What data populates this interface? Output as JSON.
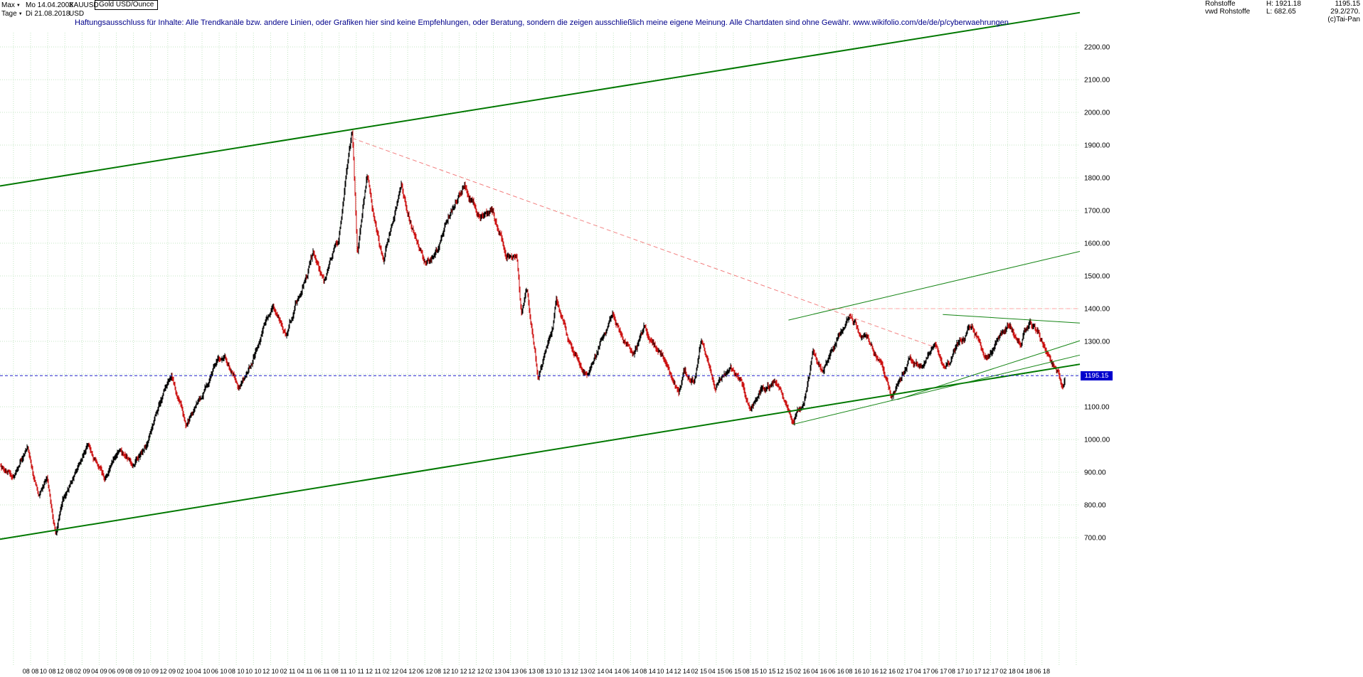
{
  "header": {
    "range_selector": "Max",
    "start_date": "Mo 14.04.2008",
    "symbol": "XAUUSD",
    "instrument": "Gold USD/Ounce",
    "period_selector": "Tage",
    "end_date": "Di 21.08.2018",
    "currency": "USD",
    "disclaimer": "Haftungsausschluss für Inhalte: Alle Trendkanäle bzw. andere Linien, oder Grafiken hier sind keine Empfehlungen, oder Beratung, sondern die zeigen ausschließlich meine eigene Meinung. Alle Chartdaten sind ohne Gewähr.  www.wikifolio.com/de/de/p/cyberwaehrungen",
    "quote_info": {
      "rows": [
        {
          "c1": "Rohstoffe",
          "c2": "H: 1921.18",
          "c3": "1195.15"
        },
        {
          "c1": "vwd Rohstoffe",
          "c2": "L: 682.65",
          "c3": "29.2/270."
        },
        {
          "c1": "",
          "c2": "",
          "c3": "(c)Tai-Pan"
        }
      ]
    }
  },
  "price_tag": {
    "value": "1195.15",
    "bg": "#0000cd"
  },
  "chart_data": {
    "type": "candlestick",
    "title": "Gold USD/Ounce",
    "symbol": "XAUUSD",
    "currency": "USD",
    "timeframe": "Tage",
    "visible_range": {
      "from": "Mo 14.04.2008",
      "to": "Di 21.08.2018"
    },
    "period_high": 1921.18,
    "period_low": 682.65,
    "last_price": 1195.15,
    "y_axis": {
      "min": 700,
      "max": 2200,
      "step": 100,
      "labels": [
        "2200.00",
        "2100.00",
        "2000.00",
        "1900.00",
        "1800.00",
        "1700.00",
        "1600.00",
        "1500.00",
        "1400.00",
        "1300.00",
        "1100.00",
        "1000.00",
        "900.00",
        "800.00",
        "700.00"
      ]
    },
    "x_axis": {
      "tick_labels": [
        "08 08",
        "10 08",
        "12 08",
        "02 09",
        "04 09",
        "06 09",
        "08 09",
        "10 09",
        "12 09",
        "02 10",
        "04 10",
        "06 10",
        "08 10",
        "10 10",
        "12 10",
        "02 11",
        "04 11",
        "06 11",
        "08 11",
        "10 11",
        "12 11",
        "02 12",
        "04 12",
        "06 12",
        "08 12",
        "10 12",
        "12 12",
        "02 13",
        "04 13",
        "06 13",
        "08 13",
        "10 13",
        "12 13",
        "02 14",
        "04 14",
        "06 14",
        "08 14",
        "10 14",
        "12 14",
        "02 15",
        "04 15",
        "06 15",
        "08 15",
        "10 15",
        "12 15",
        "02 16",
        "04 16",
        "06 16",
        "08 16",
        "10 16",
        "12 16",
        "02 17",
        "04 17",
        "06 17",
        "08 17",
        "10 17",
        "12 17",
        "02 18",
        "04 18",
        "06 18"
      ],
      "first_tick_month_offset": 3.57,
      "tick_step_months": 2,
      "months_total": 126
    },
    "series": {
      "name": "XAUUSD",
      "anchors_month_price": [
        [
          0,
          920
        ],
        [
          1.5,
          885
        ],
        [
          3.2,
          975
        ],
        [
          4.5,
          830
        ],
        [
          5.5,
          885
        ],
        [
          6.5,
          700
        ],
        [
          7.3,
          815
        ],
        [
          8.5,
          880
        ],
        [
          10.3,
          990
        ],
        [
          12.2,
          878
        ],
        [
          14,
          975
        ],
        [
          15.5,
          925
        ],
        [
          17.3,
          1000
        ],
        [
          20,
          1212
        ],
        [
          21.8,
          1055
        ],
        [
          23.5,
          1120
        ],
        [
          25,
          1230
        ],
        [
          26.2,
          1255
        ],
        [
          27.8,
          1160
        ],
        [
          29.5,
          1250
        ],
        [
          31.8,
          1420
        ],
        [
          33.5,
          1320
        ],
        [
          36.5,
          1563
        ],
        [
          37.8,
          1478
        ],
        [
          39.5,
          1610
        ],
        [
          41.1,
          1918
        ],
        [
          41.7,
          1562
        ],
        [
          42.8,
          1795
        ],
        [
          44.7,
          1532
        ],
        [
          46.8,
          1788
        ],
        [
          49.5,
          1530
        ],
        [
          51.5,
          1620
        ],
        [
          54.2,
          1792
        ],
        [
          56,
          1670
        ],
        [
          57.5,
          1692
        ],
        [
          59,
          1575
        ],
        [
          60.3,
          1555
        ],
        [
          60.8,
          1380
        ],
        [
          61.5,
          1468
        ],
        [
          62.8,
          1185
        ],
        [
          64.5,
          1335
        ],
        [
          64.9,
          1430
        ],
        [
          66.5,
          1280
        ],
        [
          68.7,
          1188
        ],
        [
          70.5,
          1330
        ],
        [
          71.5,
          1390
        ],
        [
          73.8,
          1245
        ],
        [
          75.2,
          1340
        ],
        [
          78,
          1215
        ],
        [
          79.2,
          1138
        ],
        [
          79.8,
          1200
        ],
        [
          81,
          1185
        ],
        [
          81.8,
          1302
        ],
        [
          83.5,
          1148
        ],
        [
          85.2,
          1226
        ],
        [
          86.5,
          1170
        ],
        [
          87.6,
          1082
        ],
        [
          89,
          1155
        ],
        [
          90.5,
          1180
        ],
        [
          92.5,
          1048
        ],
        [
          93.8,
          1120
        ],
        [
          94.8,
          1262
        ],
        [
          96,
          1212
        ],
        [
          98,
          1322
        ],
        [
          99.1,
          1372
        ],
        [
          101,
          1308
        ],
        [
          102.3,
          1252
        ],
        [
          104,
          1130
        ],
        [
          106,
          1245
        ],
        [
          107.5,
          1214
        ],
        [
          109,
          1292
        ],
        [
          110.3,
          1208
        ],
        [
          113.2,
          1352
        ],
        [
          115,
          1240
        ],
        [
          117.8,
          1360
        ],
        [
          119,
          1302
        ],
        [
          120.2,
          1355
        ],
        [
          122,
          1278
        ],
        [
          123.5,
          1205
        ],
        [
          124.05,
          1162
        ],
        [
          124.3,
          1195
        ]
      ]
    },
    "trendlines": [
      {
        "name": "upper-channel",
        "from": [
          0,
          1775
        ],
        "to": [
          126,
          2305
        ],
        "color": "#007800",
        "width": 2,
        "dash": ""
      },
      {
        "name": "lower-channel",
        "from": [
          0,
          695
        ],
        "to": [
          126,
          1230
        ],
        "color": "#007800",
        "width": 2,
        "dash": ""
      },
      {
        "name": "downtrend-2011",
        "from": [
          41.1,
          1921
        ],
        "to": [
          109.5,
          1278
        ],
        "color": "#f28080",
        "width": 1,
        "dash": "6,4"
      },
      {
        "name": "resistance-1400",
        "from": [
          97,
          1400
        ],
        "to": [
          126,
          1400
        ],
        "color": "#ffa6a6",
        "width": 1,
        "dash": "6,4"
      },
      {
        "name": "rising-resistance",
        "from": [
          92,
          1365
        ],
        "to": [
          126,
          1575
        ],
        "color": "#158515",
        "width": 1,
        "dash": ""
      },
      {
        "name": "support-2015-2016",
        "from": [
          92.5,
          1046
        ],
        "to": [
          126,
          1258
        ],
        "color": "#158515",
        "width": 1,
        "dash": ""
      },
      {
        "name": "support-2016-2018",
        "from": [
          104.7,
          1122
        ],
        "to": [
          126,
          1302
        ],
        "color": "#158515",
        "width": 1,
        "dash": ""
      },
      {
        "name": "top-line-2017-2018",
        "from": [
          110,
          1382
        ],
        "to": [
          126,
          1356
        ],
        "color": "#158515",
        "width": 1,
        "dash": ""
      }
    ],
    "current_price_line": {
      "price": 1195.15,
      "color": "#2222cc",
      "dash": "4,3"
    },
    "grid": {
      "color": "#c3e6c3",
      "h_step": 100,
      "v_step_months": 2
    },
    "candle_colors": {
      "up": "#000000",
      "down": "#cc1111"
    }
  }
}
